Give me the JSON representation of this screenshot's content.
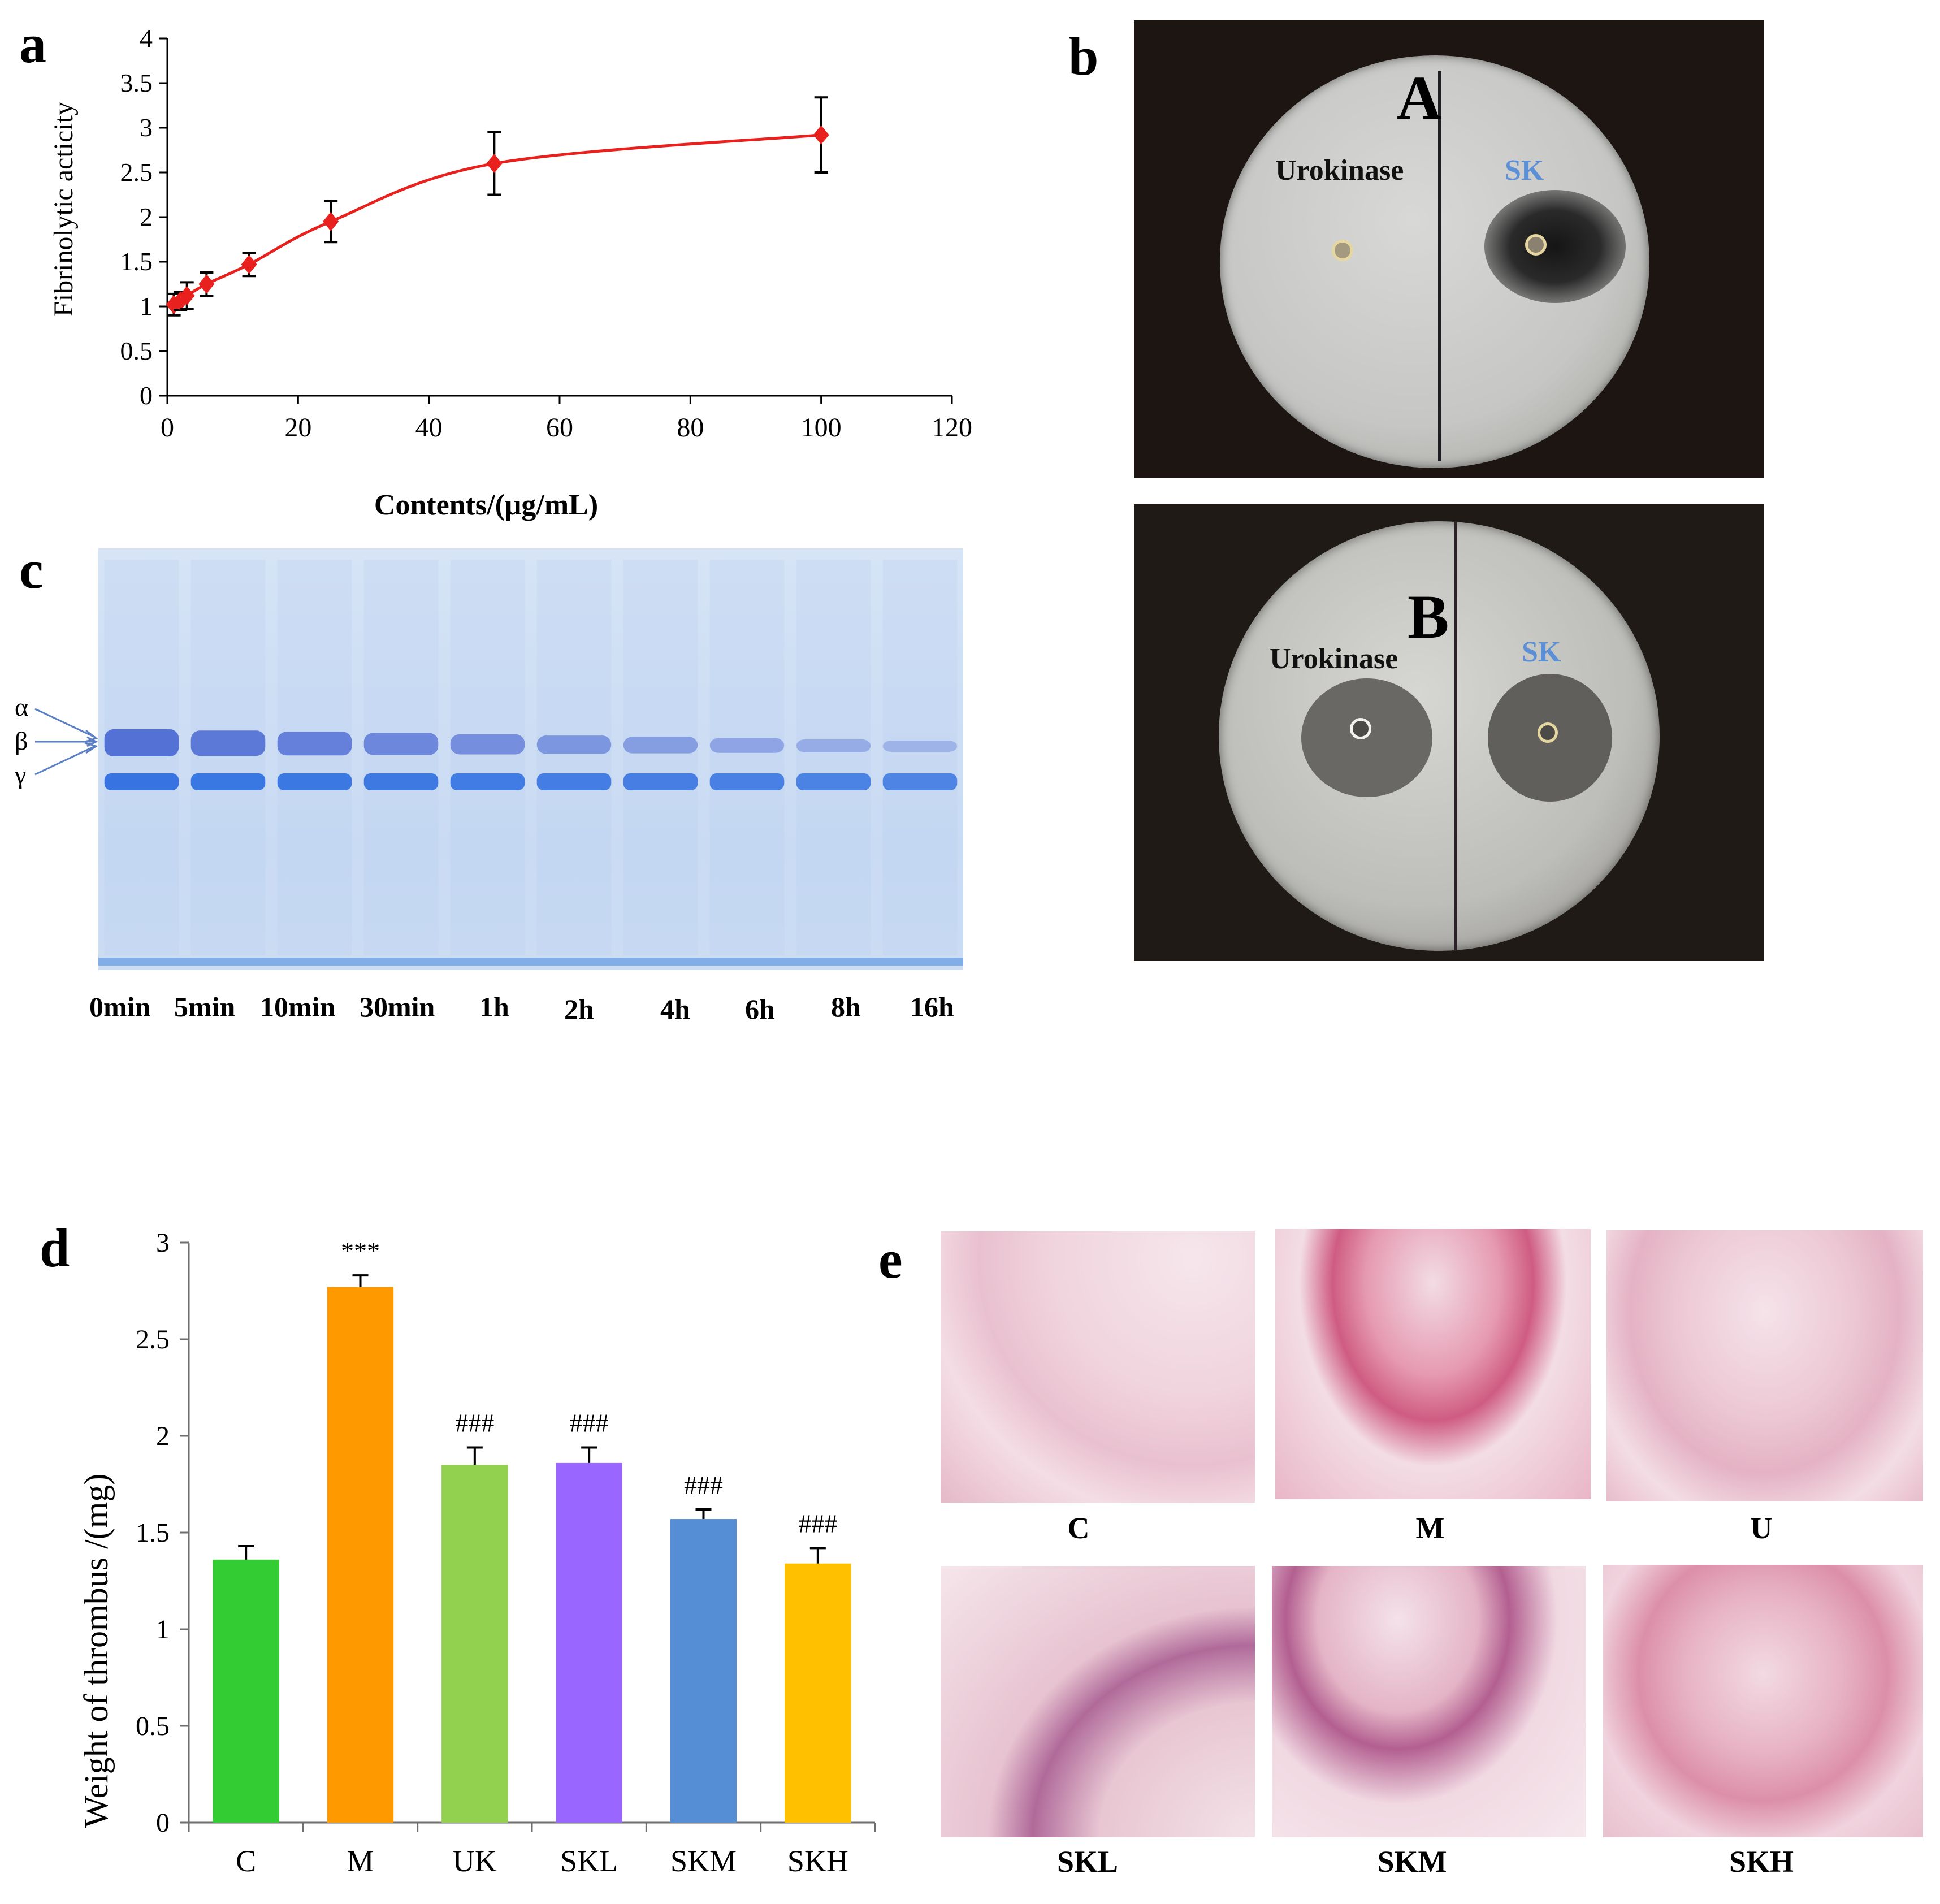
{
  "panels": {
    "a": "a",
    "b": "b",
    "c": "c",
    "d": "d",
    "e": "e"
  },
  "chart_data": [
    {
      "id": "a",
      "type": "line",
      "title": "",
      "xlabel": "Contents/(μg/mL)",
      "ylabel": "Fibrinolytic acticity",
      "xlim": [
        0,
        120
      ],
      "ylim": [
        0,
        4
      ],
      "xticks": [
        0,
        20,
        40,
        60,
        80,
        100,
        120
      ],
      "yticks": [
        0,
        0.5,
        1,
        1.5,
        2,
        2.5,
        3,
        3.5,
        4
      ],
      "xtick_labels": [
        "0",
        "20",
        "40",
        "60",
        "80",
        "100",
        "120"
      ],
      "ytick_labels": [
        "0",
        "0.5",
        "1",
        "1.5",
        "2",
        "2.5",
        "3",
        "3.5",
        "4"
      ],
      "series": [
        {
          "name": "fibrinolytic activity",
          "color": "#e8211f",
          "x": [
            1,
            2,
            3,
            6,
            12.5,
            25,
            50,
            100
          ],
          "y": [
            1.02,
            1.06,
            1.12,
            1.25,
            1.47,
            1.95,
            2.6,
            2.92
          ],
          "error": [
            0.12,
            0.1,
            0.15,
            0.13,
            0.13,
            0.23,
            0.35,
            0.42
          ]
        }
      ]
    },
    {
      "id": "d",
      "type": "bar",
      "title": "",
      "xlabel": "",
      "ylabel": "Weight of thrombus /(mg)",
      "ylim": [
        0,
        3
      ],
      "yticks": [
        0,
        0.5,
        1,
        1.5,
        2,
        2.5,
        3
      ],
      "ytick_labels": [
        "0",
        "0.5",
        "1",
        "1.5",
        "2",
        "2.5",
        "3"
      ],
      "categories": [
        "C",
        "M",
        "UK",
        "SKL",
        "SKM",
        "SKH"
      ],
      "values": [
        1.36,
        2.77,
        1.85,
        1.86,
        1.57,
        1.34
      ],
      "errors": [
        0.07,
        0.06,
        0.09,
        0.08,
        0.05,
        0.08
      ],
      "colors": [
        "#33cc33",
        "#ff9900",
        "#92d050",
        "#9966ff",
        "#558ed5",
        "#ffc000"
      ],
      "annotations": [
        "",
        "***",
        "###",
        "###",
        "###",
        "###"
      ]
    }
  ],
  "plates": {
    "A": {
      "letter": "A",
      "left": "Urokinase",
      "right": "SK"
    },
    "B": {
      "letter": "B",
      "left": "Urokinase",
      "right": "SK"
    }
  },
  "gel": {
    "bands": [
      "α",
      "β",
      "γ"
    ],
    "lanes": [
      "0min",
      "5min",
      "10min",
      "30min",
      "1h",
      "2h",
      "4h",
      "6h",
      "8h",
      "16h"
    ]
  },
  "histology": {
    "labels": [
      "C",
      "M",
      "U",
      "SKL",
      "SKM",
      "SKH"
    ]
  }
}
